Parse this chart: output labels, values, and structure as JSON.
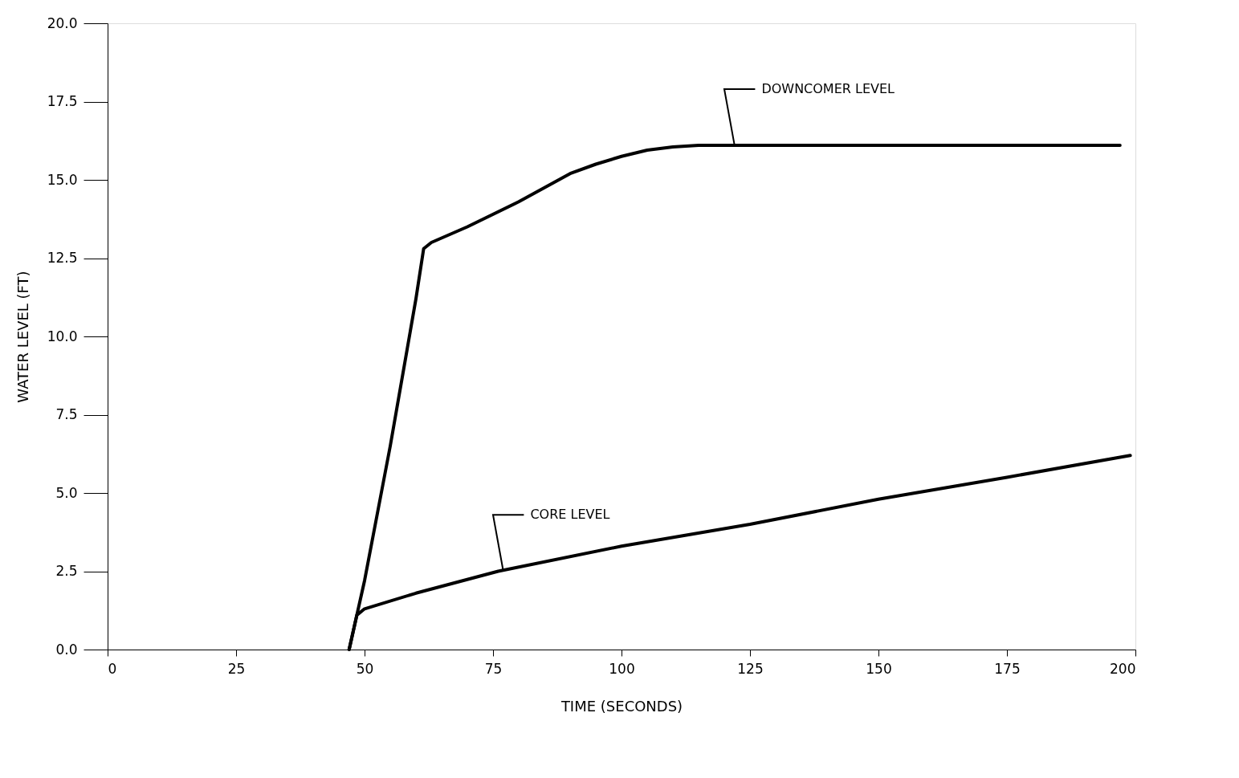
{
  "chart_data": {
    "type": "line",
    "xlabel": "TIME (SECONDS)",
    "ylabel": "WATER LEVEL (FT)",
    "xlim": [
      0,
      200
    ],
    "xticks": [
      0,
      25,
      50,
      75,
      100,
      125,
      150,
      175,
      200
    ],
    "ylim": [
      0,
      20
    ],
    "yticks": [
      {
        "value": 0,
        "label": "0.0"
      },
      2.5,
      {
        "value": 5,
        "label": "5.0"
      },
      7.5,
      {
        "value": 10,
        "label": "10.0"
      },
      12.5,
      {
        "value": 15,
        "label": "15.0"
      },
      17.5,
      {
        "value": 20,
        "label": "20.0"
      }
    ],
    "grid": false,
    "marker": "none",
    "line_style": "solid",
    "series": [
      {
        "color": "#000000",
        "x": [
          47,
          50,
          55,
          60,
          61.5,
          63,
          70,
          80,
          90,
          95,
          100,
          105,
          110,
          115,
          120,
          130,
          150,
          175,
          197
        ],
        "values": [
          0,
          2.2,
          6.5,
          11.2,
          12.8,
          13.0,
          13.5,
          14.3,
          15.2,
          15.5,
          15.75,
          15.95,
          16.05,
          16.1,
          16.1,
          16.1,
          16.1,
          16.1,
          16.1
        ]
      },
      {
        "color": "#000000",
        "x": [
          47,
          48.5,
          50,
          60,
          76,
          100,
          125,
          150,
          175,
          199
        ],
        "values": [
          0,
          1.1,
          1.3,
          1.8,
          2.5,
          3.3,
          4.0,
          4.8,
          5.5,
          6.2
        ]
      }
    ],
    "annotations": [
      {
        "text": "DOWNCOMER LEVEL",
        "x": 122,
        "y": 16.1
      },
      {
        "text": "CORE LEVEL",
        "x": 77,
        "y": 2.5
      }
    ]
  }
}
